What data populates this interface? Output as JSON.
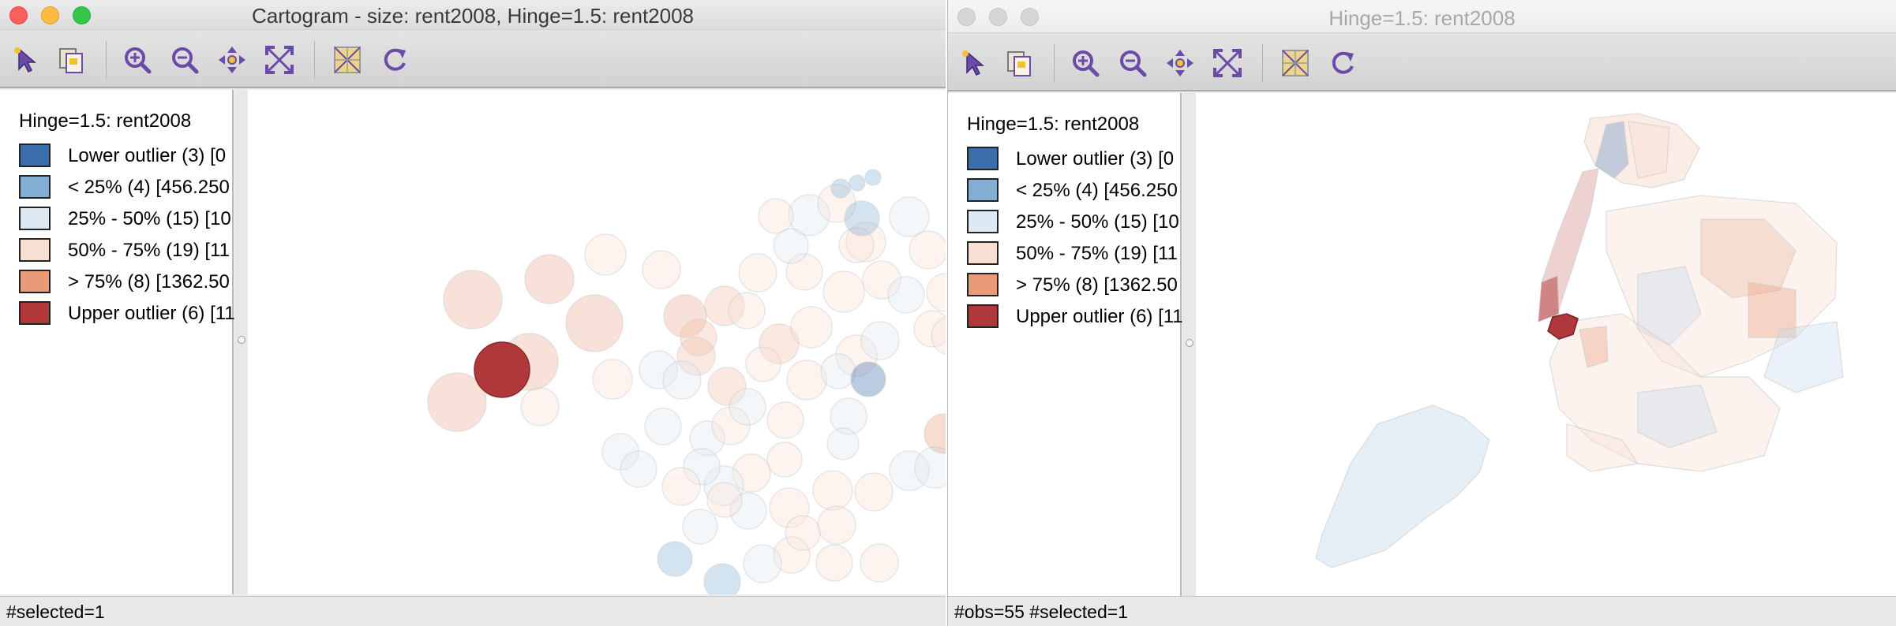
{
  "left_window": {
    "title": "Cartogram - size: rent2008, Hinge=1.5: rent2008",
    "legend_title": "Hinge=1.5: rent2008",
    "legend": [
      {
        "label": "Lower outlier (3)  [0",
        "color": "#3a6eaa"
      },
      {
        "label": "< 25% (4)  [456.250",
        "color": "#82aed3"
      },
      {
        "label": "25% - 50% (15)  [10",
        "color": "#dce9f2"
      },
      {
        "label": "50% - 75% (19)  [11",
        "color": "#f8dfd4"
      },
      {
        "label": "> 75% (8)  [1362.50",
        "color": "#e89a79"
      },
      {
        "label": "Upper outlier (6)  [11",
        "color": "#b0373a"
      }
    ],
    "status": "#selected=1"
  },
  "right_window": {
    "title": "Hinge=1.5: rent2008",
    "legend_title": "Hinge=1.5: rent2008",
    "legend": [
      {
        "label": "Lower outlier (3)  [0",
        "color": "#3a6eaa"
      },
      {
        "label": "< 25% (4)  [456.250",
        "color": "#82aed3"
      },
      {
        "label": "25% - 50% (15)  [10",
        "color": "#dce9f2"
      },
      {
        "label": "50% - 75% (19)  [11",
        "color": "#f8dfd4"
      },
      {
        "label": "> 75% (8)  [1362.50",
        "color": "#e89a79"
      },
      {
        "label": "Upper outlier (6)  [11",
        "color": "#b0373a"
      }
    ],
    "status": "#obs=55 #selected=1"
  },
  "toolbar_icons": [
    "select-arrow-icon",
    "copy-selection-icon",
    "zoom-in-icon",
    "zoom-out-icon",
    "pan-icon",
    "fit-extent-icon",
    "toggle-basemap-icon",
    "refresh-icon"
  ],
  "colors": {
    "accent_purple": "#6a4ca8",
    "selected_fill": "#b0373a",
    "dimmed_opacity": 0.25
  }
}
